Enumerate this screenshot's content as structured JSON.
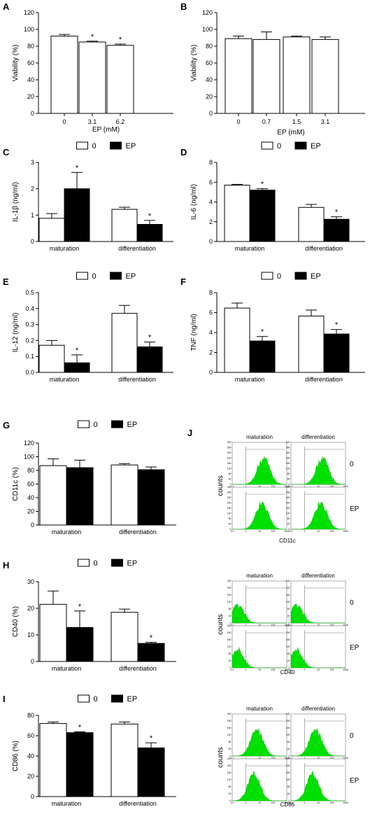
{
  "chart_data": [
    {
      "panel": "A",
      "type": "bar",
      "categories": [
        "0",
        "3.1",
        "6.2"
      ],
      "values": [
        92,
        85,
        81
      ],
      "errors": [
        2,
        1,
        1.5
      ],
      "significant": [
        false,
        true,
        true
      ],
      "xlabel": "EP (mM)",
      "ylabel": "Viability (%)",
      "ylim": [
        0,
        120
      ],
      "yticks": [
        "0",
        "20",
        "40",
        "60",
        "80",
        "100",
        "120"
      ],
      "grid": false
    },
    {
      "panel": "B",
      "type": "bar",
      "categories": [
        "0",
        "0.7",
        "1.5",
        "3.1"
      ],
      "values": [
        89,
        88,
        91,
        88
      ],
      "errors": [
        3,
        9,
        1,
        3
      ],
      "significant": [
        false,
        false,
        false,
        false
      ],
      "xlabel": "EP (mM)",
      "ylabel": "Viability (%)",
      "ylim": [
        0,
        120
      ],
      "yticks": [
        "0",
        "20",
        "40",
        "60",
        "80",
        "100",
        "120"
      ],
      "grid": false
    },
    {
      "panel": "C",
      "type": "bar",
      "categories": [
        "maturation",
        "differentiation"
      ],
      "series": [
        {
          "name": "0",
          "color": "#ffffff",
          "values": [
            0.88,
            1.22
          ],
          "errors": [
            0.18,
            0.08
          ],
          "significant": [
            false,
            false
          ]
        },
        {
          "name": "EP",
          "color": "#000000",
          "values": [
            2.0,
            0.65
          ],
          "errors": [
            0.62,
            0.15
          ],
          "significant": [
            true,
            true
          ]
        }
      ],
      "ylabel": "IL-1β (ng/ml)",
      "ylim": [
        0,
        3
      ],
      "yticks": [
        "0",
        "1",
        "2",
        "3"
      ],
      "legend": "top"
    },
    {
      "panel": "D",
      "type": "bar",
      "categories": [
        "maturation",
        "differentiation"
      ],
      "series": [
        {
          "name": "0",
          "color": "#ffffff",
          "values": [
            5.7,
            3.45
          ],
          "errors": [
            0.08,
            0.3
          ],
          "significant": [
            false,
            false
          ]
        },
        {
          "name": "EP",
          "color": "#000000",
          "values": [
            5.2,
            2.25
          ],
          "errors": [
            0.15,
            0.25
          ],
          "significant": [
            true,
            true
          ]
        }
      ],
      "ylabel": "IL-6 (ng/ml)",
      "ylim": [
        0,
        8
      ],
      "yticks": [
        "0",
        "2",
        "4",
        "6",
        "8"
      ],
      "legend": "top"
    },
    {
      "panel": "E",
      "type": "bar",
      "categories": [
        "maturation",
        "differentiation"
      ],
      "series": [
        {
          "name": "0",
          "color": "#ffffff",
          "values": [
            0.17,
            0.37
          ],
          "errors": [
            0.03,
            0.05
          ],
          "significant": [
            false,
            false
          ]
        },
        {
          "name": "EP",
          "color": "#000000",
          "values": [
            0.06,
            0.16
          ],
          "errors": [
            0.05,
            0.03
          ],
          "significant": [
            true,
            true
          ]
        }
      ],
      "ylabel": "IL-12 (ng/ml)",
      "ylim": [
        0,
        0.5
      ],
      "yticks": [
        "0.0",
        "0.1",
        "0.2",
        "0.3",
        "0.4",
        "0.5"
      ],
      "legend": "top"
    },
    {
      "panel": "F",
      "type": "bar",
      "categories": [
        "maturation",
        "differentiation"
      ],
      "series": [
        {
          "name": "0",
          "color": "#ffffff",
          "values": [
            6.45,
            5.65
          ],
          "errors": [
            0.5,
            0.6
          ],
          "significant": [
            false,
            false
          ]
        },
        {
          "name": "EP",
          "color": "#000000",
          "values": [
            3.15,
            3.85
          ],
          "errors": [
            0.45,
            0.45
          ],
          "significant": [
            true,
            true
          ]
        }
      ],
      "ylabel": "TNF (ng/ml)",
      "ylim": [
        0,
        8
      ],
      "yticks": [
        "0",
        "2",
        "4",
        "6",
        "8"
      ],
      "legend": "top"
    },
    {
      "panel": "G",
      "type": "bar",
      "categories": [
        "maturation",
        "differentiation"
      ],
      "series": [
        {
          "name": "0",
          "color": "#ffffff",
          "values": [
            87,
            88
          ],
          "errors": [
            10,
            2
          ],
          "significant": [
            false,
            false
          ]
        },
        {
          "name": "EP",
          "color": "#000000",
          "values": [
            84,
            81
          ],
          "errors": [
            11,
            4
          ],
          "significant": [
            false,
            false
          ]
        }
      ],
      "ylabel": "CD11c (%)",
      "ylim": [
        0,
        120
      ],
      "yticks": [
        "0",
        "20",
        "40",
        "60",
        "80",
        "100",
        "120"
      ],
      "legend": "top"
    },
    {
      "panel": "H",
      "type": "bar",
      "categories": [
        "maturation",
        "differentiation"
      ],
      "series": [
        {
          "name": "0",
          "color": "#ffffff",
          "values": [
            21.5,
            18.5
          ],
          "errors": [
            5,
            1.2
          ],
          "significant": [
            false,
            false
          ]
        },
        {
          "name": "EP",
          "color": "#000000",
          "values": [
            12.8,
            6.8
          ],
          "errors": [
            6.2,
            0.4
          ],
          "significant": [
            true,
            true
          ]
        }
      ],
      "ylabel": "CD40 (%)",
      "ylim": [
        0,
        30
      ],
      "yticks": [
        "0",
        "10",
        "20",
        "30"
      ],
      "legend": "top"
    },
    {
      "panel": "I",
      "type": "bar",
      "categories": [
        "maturation",
        "differentiation"
      ],
      "series": [
        {
          "name": "0",
          "color": "#ffffff",
          "values": [
            72,
            71.5
          ],
          "errors": [
            1.5,
            2
          ],
          "significant": [
            false,
            false
          ]
        },
        {
          "name": "EP",
          "color": "#000000",
          "values": [
            63,
            48
          ],
          "errors": [
            0.8,
            5
          ],
          "significant": [
            true,
            true
          ]
        }
      ],
      "ylabel": "CD86 (%)",
      "ylim": [
        0,
        80
      ],
      "yticks": [
        "0",
        "20",
        "40",
        "60",
        "80"
      ],
      "legend": "top"
    },
    {
      "panel": "J",
      "type": "histogram",
      "marker": "CD11c",
      "columns": [
        "maturation",
        "differentiation"
      ],
      "rows": [
        "0",
        "EP"
      ],
      "ylabel": "counts",
      "xticks": [
        "0.1",
        "1",
        "10",
        "100",
        "1000"
      ],
      "yticks": [
        "0",
        "40",
        "80",
        "120",
        "160",
        "200",
        "240",
        "280",
        "320"
      ],
      "peak_log10": [
        1.3,
        1.3,
        1.2,
        1.2
      ],
      "color": "#00e000"
    },
    {
      "panel": "J",
      "type": "histogram",
      "marker": "CD40",
      "columns": [
        "maturation",
        "differentiation"
      ],
      "rows": [
        "0",
        "EP"
      ],
      "ylabel": "counts",
      "xticks": [
        "0.1",
        "1",
        "10",
        "100",
        "1000"
      ],
      "yticks": [
        "0",
        "40",
        "80",
        "120",
        "160",
        "200",
        "240"
      ],
      "peak_log10": [
        -0.6,
        -0.6,
        -0.65,
        -0.65
      ],
      "color": "#00e000"
    },
    {
      "panel": "J",
      "type": "histogram",
      "marker": "CD86",
      "columns": [
        "maturation",
        "differentiation"
      ],
      "rows": [
        "0",
        "EP"
      ],
      "ylabel": "counts",
      "xticks": [
        "0.1",
        "1",
        "10",
        "100",
        "1000"
      ],
      "yticks": [
        "0",
        "40",
        "80",
        "120",
        "160",
        "200",
        "240"
      ],
      "peak_log10": [
        0.8,
        0.8,
        0.6,
        0.6
      ],
      "color": "#00e000"
    }
  ]
}
